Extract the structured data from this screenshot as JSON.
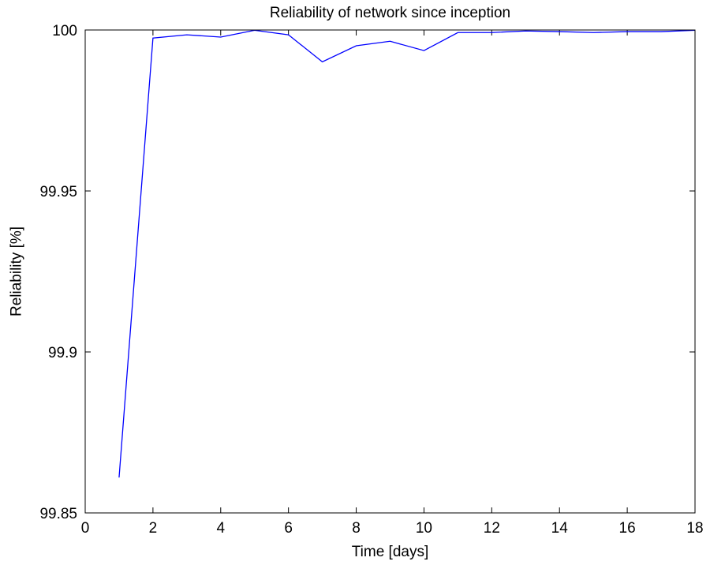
{
  "chart_data": {
    "type": "line",
    "title": "Reliability of network since inception",
    "xlabel": "Time [days]",
    "ylabel": "Reliability [%]",
    "xlim": [
      0,
      18
    ],
    "ylim": [
      99.85,
      100
    ],
    "xticks": [
      0,
      2,
      4,
      6,
      8,
      10,
      12,
      14,
      16,
      18
    ],
    "xtick_labels": [
      "0",
      "2",
      "4",
      "6",
      "8",
      "10",
      "12",
      "14",
      "16",
      "18"
    ],
    "yticks": [
      99.85,
      99.9,
      99.95,
      100
    ],
    "ytick_labels": [
      "99.85",
      "99.9",
      "99.95",
      "100"
    ],
    "grid": false,
    "series": [
      {
        "color": "#0000ff",
        "x": [
          1,
          2,
          3,
          4,
          5,
          6,
          7,
          8,
          9,
          10,
          11,
          12,
          13,
          14,
          15,
          16,
          17,
          18
        ],
        "y": [
          99.861,
          99.9975,
          99.9985,
          99.9978,
          99.9999,
          99.9985,
          99.9901,
          99.9951,
          99.9965,
          99.9936,
          99.9992,
          99.9992,
          99.9997,
          99.9995,
          99.9992,
          99.9995,
          99.9995,
          99.9999
        ]
      }
    ]
  }
}
